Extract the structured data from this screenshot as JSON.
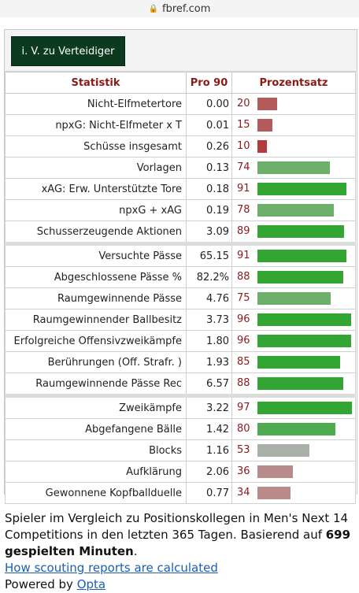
{
  "browser": {
    "url": "fbref.com"
  },
  "position_button": "i. V. zu Verteidiger",
  "table": {
    "headers": {
      "stat": "Statistik",
      "per90": "Pro 90",
      "pct": "Prozentsatz"
    },
    "rows": [
      {
        "stat": "Nicht-Elfmetertore",
        "per90": "0.00",
        "pct": 20,
        "color": "#b55a5a"
      },
      {
        "stat": "npxG: Nicht-Elfmeter x T",
        "per90": "0.01",
        "pct": 15,
        "color": "#b55a5a"
      },
      {
        "stat": "Schüsse insgesamt",
        "per90": "0.26",
        "pct": 10,
        "color": "#b33b3b"
      },
      {
        "stat": "Vorlagen",
        "per90": "0.13",
        "pct": 74,
        "color": "#6cb06c"
      },
      {
        "stat": "xAG: Erw. Unterstützte Tore",
        "per90": "0.18",
        "pct": 91,
        "color": "#33a533"
      },
      {
        "stat": "npxG + xAG",
        "per90": "0.19",
        "pct": 78,
        "color": "#6cb06c"
      },
      {
        "stat": "Schusserzeugende Aktionen",
        "per90": "3.09",
        "pct": 89,
        "color": "#33a533"
      },
      {
        "stat": "Versuchte Pässe",
        "per90": "65.15",
        "pct": 91,
        "color": "#33a533"
      },
      {
        "stat": "Abgeschlossene Pässe %",
        "per90": "82.2%",
        "pct": 88,
        "color": "#33a533"
      },
      {
        "stat": "Raumgewinnende Pässe",
        "per90": "4.76",
        "pct": 75,
        "color": "#6cb06c"
      },
      {
        "stat": "Raumgewinnender Ballbesitz",
        "per90": "3.73",
        "pct": 96,
        "color": "#33a533"
      },
      {
        "stat": "Erfolgreiche Offensivzweikämpfe",
        "per90": "1.80",
        "pct": 96,
        "color": "#33a533"
      },
      {
        "stat": "Berührungen (Off. Strafr. )",
        "per90": "1.93",
        "pct": 85,
        "color": "#33a533"
      },
      {
        "stat": "Raumgewinnende Pässe Rec",
        "per90": "6.57",
        "pct": 88,
        "color": "#33a533"
      },
      {
        "stat": "Zweikämpfe",
        "per90": "3.22",
        "pct": 97,
        "color": "#33a533"
      },
      {
        "stat": "Abgefangene Bälle",
        "per90": "1.42",
        "pct": 80,
        "color": "#4fab4f"
      },
      {
        "stat": "Blocks",
        "per90": "1.16",
        "pct": 53,
        "color": "#a8b0a8"
      },
      {
        "stat": "Aufklärung",
        "per90": "2.06",
        "pct": 36,
        "color": "#b88a8a"
      },
      {
        "stat": "Gewonnene Kopfballduelle",
        "per90": "0.77",
        "pct": 34,
        "color": "#b88a8a"
      }
    ]
  },
  "footer": {
    "text_part1": "Spieler im Vergleich zu Positionskollegen in Men's Next 14 Competitions in den letzten 365 Tagen. Basierend auf ",
    "minutes_bold": "699 gespielten Minuten",
    "text_part2": ".",
    "scouting_link": "How scouting reports are calculated",
    "powered_by": "Powered by ",
    "opta_link": "Opta"
  }
}
